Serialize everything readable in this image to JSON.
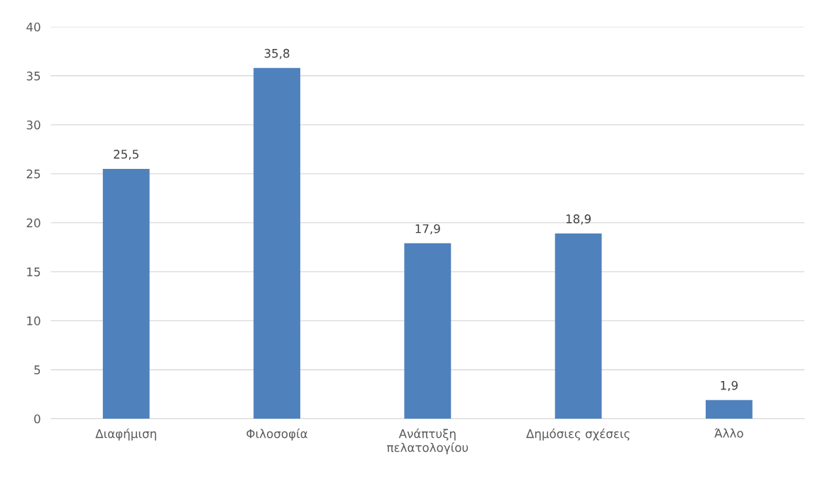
{
  "chart_data": {
    "type": "bar",
    "categories": [
      "Διαφήμιση",
      "Φιλοσοφία",
      "Ανάπτυξη\nπελατολογίου",
      "Δημόσιες σχέσεις",
      "Άλλο"
    ],
    "values": [
      25.5,
      35.8,
      17.9,
      18.9,
      1.9
    ],
    "value_labels": [
      "25,5",
      "35,8",
      "17,9",
      "18,9",
      "1,9"
    ],
    "color": "#4f81bd",
    "ylim": [
      0,
      40
    ],
    "yticks": [
      0,
      5,
      10,
      15,
      20,
      25,
      30,
      35,
      40
    ],
    "grid": "y",
    "legend": false
  }
}
